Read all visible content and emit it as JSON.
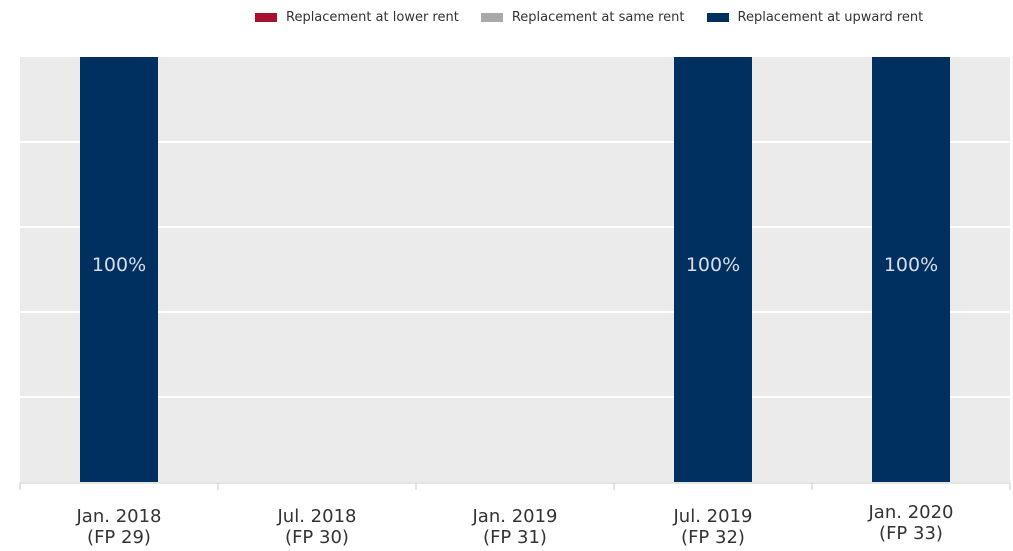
{
  "chart_data": {
    "type": "bar",
    "stacked": true,
    "categories": [
      [
        "Jan. 2018",
        "(FP 29)"
      ],
      [
        "Jul. 2018",
        "(FP 30)"
      ],
      [
        "Jan. 2019",
        "(FP 31)"
      ],
      [
        "Jul. 2019",
        "(FP 32)"
      ],
      [
        "Jan. 2020",
        "(FP 33)"
      ]
    ],
    "series": [
      {
        "name": "Replacement at lower rent",
        "color": "#a6112f",
        "values": [
          0,
          0,
          0,
          0,
          0
        ]
      },
      {
        "name": "Replacement at same rent",
        "color": "#a9a9a9",
        "values": [
          0,
          0,
          0,
          0,
          0
        ]
      },
      {
        "name": "Replacement at upward rent",
        "color": "#003060",
        "values": [
          100,
          null,
          null,
          100,
          100
        ]
      }
    ],
    "data_labels": [
      "100%",
      "",
      "",
      "100%",
      "100%"
    ],
    "ylim": [
      0,
      100
    ],
    "grid": true,
    "legend_position": "top-right",
    "plot_background": "#ebebeb"
  }
}
